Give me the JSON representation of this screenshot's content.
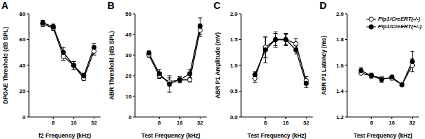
{
  "chart_data": [
    {
      "type": "line",
      "title": "A",
      "x_label": "f2 Frequency (kHz)",
      "y_label": "DPOAE Threshold (dB SPL)",
      "log": "x",
      "x": [
        5.6,
        8,
        11.3,
        16,
        22.6,
        32
      ],
      "xlim": [
        3.5,
        40
      ],
      "xticks": [
        8,
        16,
        32
      ],
      "ylim": [
        0,
        80
      ],
      "yticks": [
        0,
        20,
        40,
        60,
        80
      ],
      "series": [
        {
          "name": "Plp1/CreERT(-/-)",
          "color": "#000000",
          "marker": "open_circle",
          "values": [
            72,
            69,
            47,
            40,
            30,
            51
          ],
          "errors": [
            2,
            2,
            3,
            3,
            2,
            3
          ]
        },
        {
          "name": "Plp1/CreERT(+/-)",
          "color": "#000000",
          "marker": "circle",
          "values": [
            73,
            70,
            50,
            40,
            32,
            54
          ],
          "errors": [
            2,
            2,
            4,
            3,
            2,
            3
          ]
        }
      ]
    },
    {
      "type": "line",
      "title": "B",
      "x_label": "Test Frequency (kHz)",
      "y_label": "ABR Threshold (dB SPL)",
      "log": "x",
      "x": [
        5.6,
        8,
        11.3,
        16,
        22.6,
        32
      ],
      "xlim": [
        3.5,
        40
      ],
      "xticks": [
        8,
        16,
        32
      ],
      "ylim": [
        0,
        50
      ],
      "yticks": [
        0,
        10,
        20,
        30,
        40,
        50
      ],
      "series": [
        {
          "name": "Plp1/CreERT(-/-)",
          "color": "#000000",
          "marker": "open_circle",
          "values": [
            30,
            20,
            17,
            18,
            18,
            42
          ],
          "errors": [
            1,
            1.5,
            2,
            1,
            1,
            3
          ]
        },
        {
          "name": "Plp1/CreERT(+/-)",
          "color": "#000000",
          "marker": "circle",
          "values": [
            31,
            21,
            16,
            18,
            21,
            44
          ],
          "errors": [
            1,
            2,
            4,
            1.5,
            2,
            4
          ]
        }
      ]
    },
    {
      "type": "line",
      "title": "C",
      "x_label": "Test Frequency (kHz)",
      "y_label": "ABR P1 Amplitude (mV)",
      "log": "x",
      "x": [
        5.6,
        8,
        11.3,
        16,
        22.6,
        32
      ],
      "xlim": [
        3.5,
        40
      ],
      "xticks": [
        8,
        16,
        32
      ],
      "ylim": [
        0,
        2
      ],
      "yticks": [
        {
          "value": 0,
          "label": "0.0"
        },
        0.5,
        {
          "value": 1,
          "label": "1.0"
        },
        1.5,
        {
          "value": 2,
          "label": "2.0"
        }
      ],
      "series": [
        {
          "name": "Plp1/CreERT(-/-)",
          "color": "#000000",
          "marker": "open_circle",
          "values": [
            0.75,
            1.35,
            1.5,
            1.5,
            1.42,
            0.7
          ],
          "errors": [
            0.08,
            0.2,
            0.12,
            0.1,
            0.1,
            0.08
          ]
        },
        {
          "name": "Plp1/CreERT(+/-)",
          "color": "#000000",
          "marker": "circle",
          "values": [
            0.82,
            1.3,
            1.5,
            1.5,
            1.3,
            0.65
          ],
          "errors": [
            0.06,
            0.25,
            0.15,
            0.12,
            0.08,
            0.08
          ]
        }
      ]
    },
    {
      "type": "line",
      "title": "D",
      "x_label": "Test Frequency (kHz)",
      "y_label": "ABR P1 Latency (ms)",
      "log": "x",
      "legend": "upper right",
      "x": [
        5.6,
        8,
        11.3,
        16,
        22.6,
        32
      ],
      "xlim": [
        3.5,
        40
      ],
      "xticks": [
        8,
        16,
        32
      ],
      "ylim": [
        1.2,
        2
      ],
      "yticks": [
        1.2,
        1.4,
        1.6,
        1.8,
        {
          "value": 2,
          "label": "2.0"
        }
      ],
      "series": [
        {
          "name": "Plp1/CreERT(-/-)",
          "color": "#000000",
          "marker": "open_circle",
          "values": [
            1.54,
            1.52,
            1.5,
            1.5,
            1.45,
            1.6
          ],
          "errors": [
            0.01,
            0.01,
            0.01,
            0.01,
            0.01,
            0.05
          ]
        },
        {
          "name": "Plp1/CreERT(+/-)",
          "color": "#000000",
          "marker": "circle",
          "values": [
            1.56,
            1.52,
            1.49,
            1.51,
            1.45,
            1.63
          ],
          "errors": [
            0.02,
            0.02,
            0.02,
            0.01,
            0.01,
            0.08
          ]
        }
      ]
    }
  ]
}
